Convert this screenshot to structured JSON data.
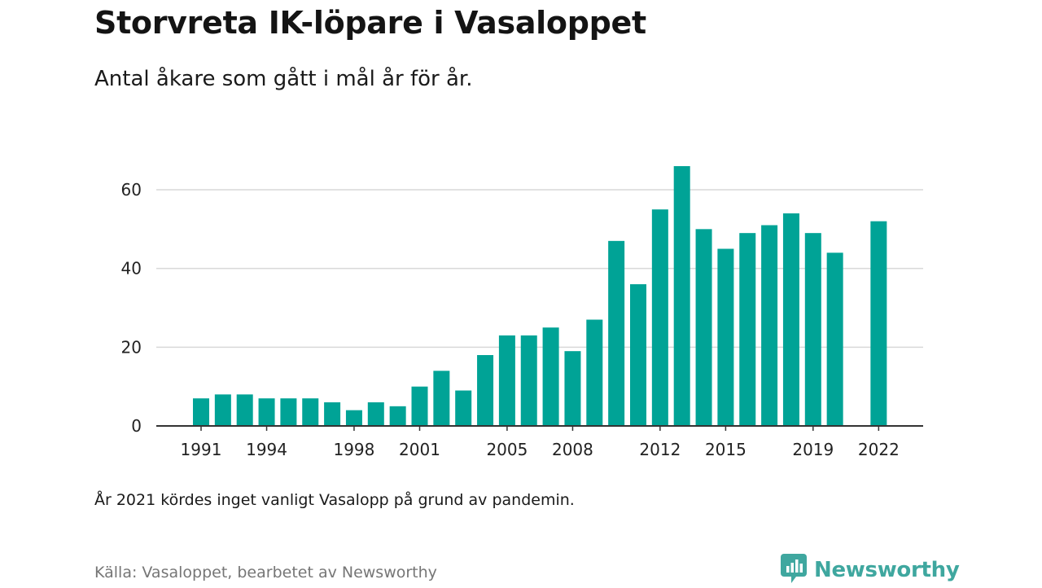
{
  "title": "Storvreta IK-löpare i Vasaloppet",
  "subtitle": "Antal åkare som gått i mål år för år.",
  "note": "År 2021 kördes inget vanligt Vasalopp på grund av pandemin.",
  "source": "Källa: Vasaloppet, bearbetet av Newsworthy",
  "brand": {
    "name": "Newsworthy",
    "icon": "newsworthy-logo-icon",
    "color": "#3fa79f"
  },
  "colors": {
    "bar": "#00a396",
    "grid": "#d9d9d9",
    "axis": "#333333"
  },
  "chart_data": {
    "type": "bar",
    "title": "Storvreta IK-löpare i Vasaloppet",
    "subtitle": "Antal åkare som gått i mål år för år.",
    "xlabel": "",
    "ylabel": "",
    "ylim": [
      0,
      68
    ],
    "yticks": [
      0,
      20,
      40,
      60
    ],
    "xtick_labels": [
      "1991",
      "1994",
      "1998",
      "2001",
      "2005",
      "2008",
      "2012",
      "2015",
      "2019",
      "2022"
    ],
    "grid": true,
    "categories": [
      "1991",
      "1992",
      "1993",
      "1994",
      "1995",
      "1996",
      "1997",
      "1998",
      "1999",
      "2000",
      "2001",
      "2002",
      "2003",
      "2004",
      "2005",
      "2006",
      "2007",
      "2008",
      "2009",
      "2010",
      "2011",
      "2012",
      "2013",
      "2014",
      "2015",
      "2016",
      "2017",
      "2018",
      "2019",
      "2020",
      "2021",
      "2022"
    ],
    "values": [
      7,
      8,
      8,
      7,
      7,
      7,
      6,
      4,
      6,
      5,
      10,
      14,
      9,
      18,
      23,
      23,
      25,
      19,
      27,
      47,
      36,
      55,
      66,
      50,
      45,
      49,
      51,
      54,
      49,
      44,
      null,
      52
    ]
  }
}
